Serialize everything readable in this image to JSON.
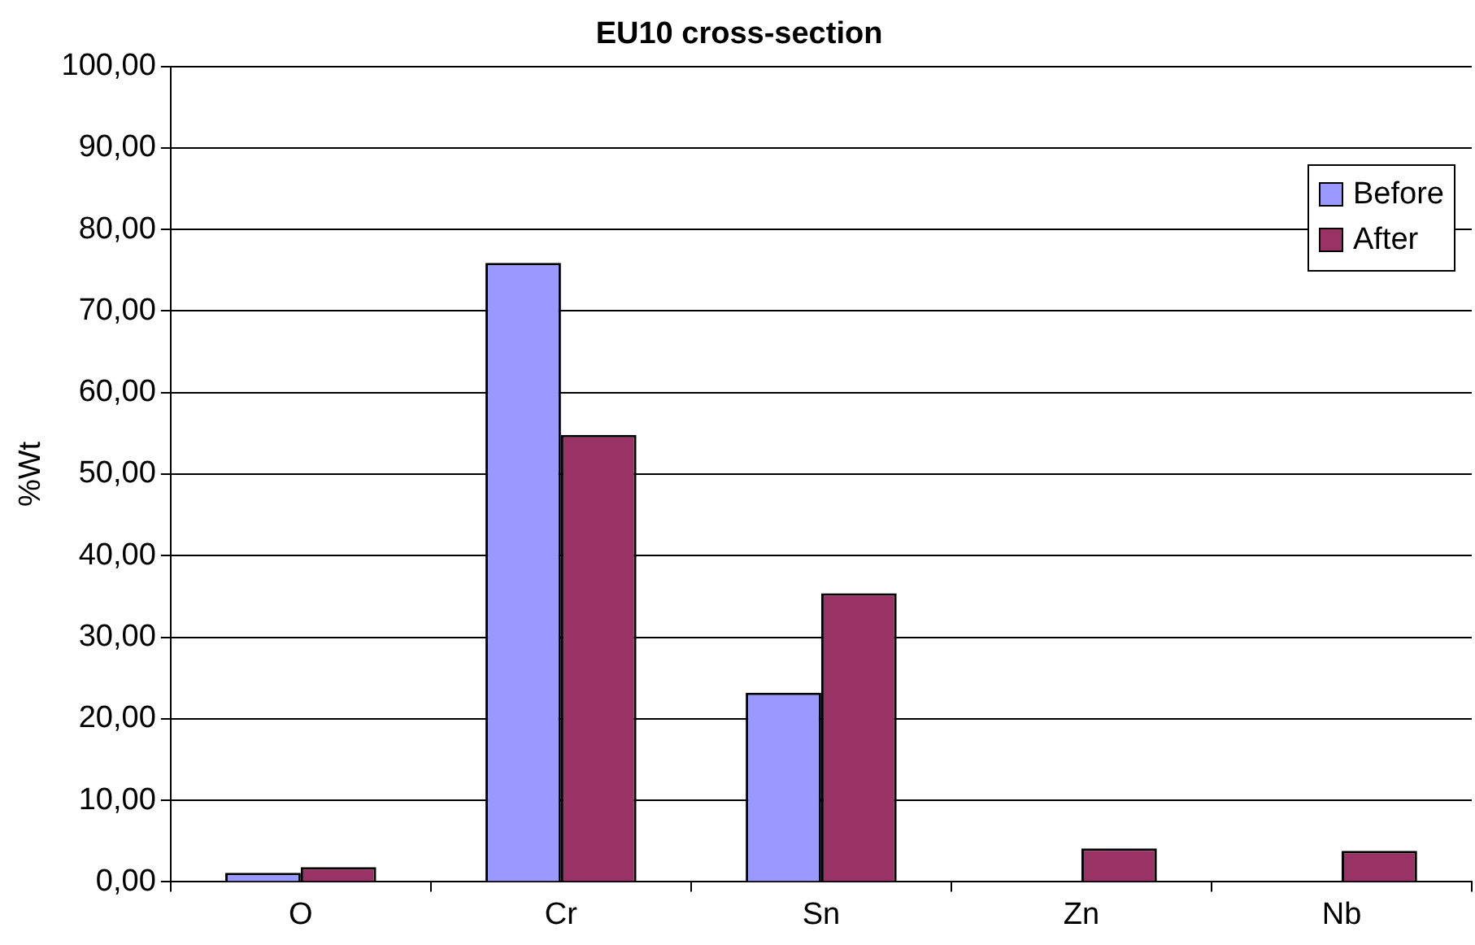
{
  "chart_data": {
    "type": "bar",
    "title": "EU10 cross-section",
    "ylabel": "%Wt",
    "categories": [
      "O",
      "Cr",
      "Sn",
      "Zn",
      "Nb"
    ],
    "series": [
      {
        "name": "Before",
        "color": "#9999ff",
        "values": [
          1.1,
          75.9,
          23.2,
          0,
          0
        ]
      },
      {
        "name": "After",
        "color": "#993366",
        "values": [
          1.8,
          54.8,
          35.4,
          4.1,
          3.8
        ]
      }
    ],
    "ylim": [
      0,
      100
    ],
    "yticks": [
      {
        "value": 0,
        "label": "0,00"
      },
      {
        "value": 10,
        "label": "10,00"
      },
      {
        "value": 20,
        "label": "20,00"
      },
      {
        "value": 30,
        "label": "30,00"
      },
      {
        "value": 40,
        "label": "40,00"
      },
      {
        "value": 50,
        "label": "50,00"
      },
      {
        "value": 60,
        "label": "60,00"
      },
      {
        "value": 70,
        "label": "70,00"
      },
      {
        "value": 80,
        "label": "80,00"
      },
      {
        "value": 90,
        "label": "90,00"
      },
      {
        "value": 100,
        "label": "100,00"
      }
    ],
    "grid": "y",
    "legend": "top right"
  }
}
